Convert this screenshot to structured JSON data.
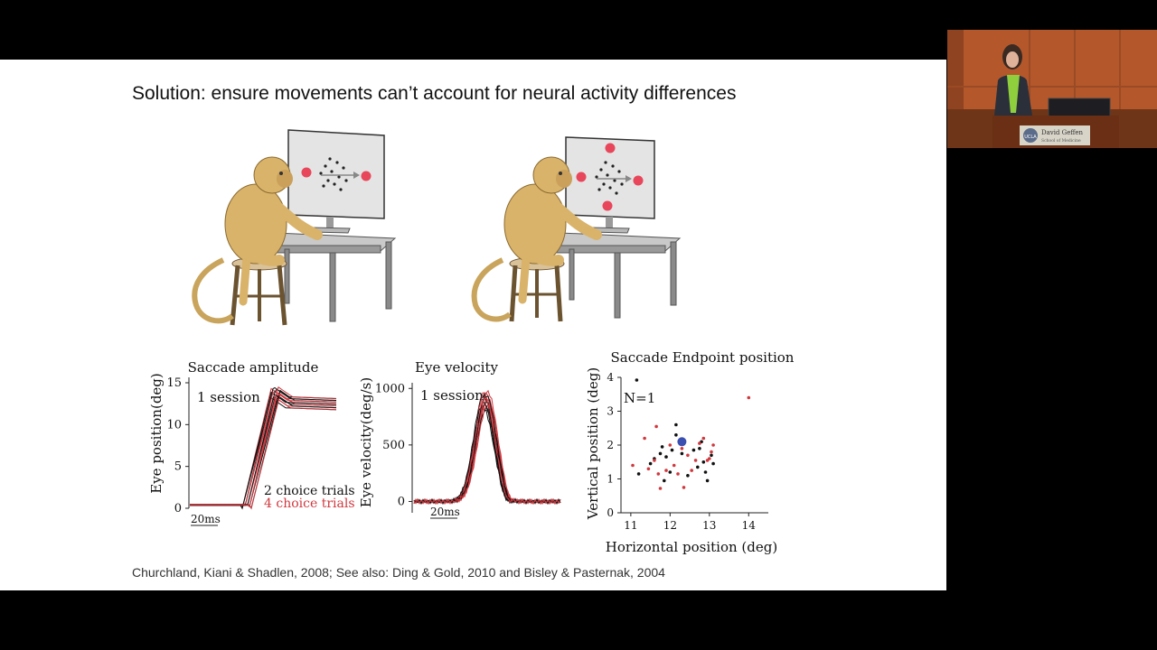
{
  "slide": {
    "title": "Solution: ensure movements can’t account for neural activity differences",
    "citation": "Churchland, Kiani & Shadlen, 2008; See also: Ding & Gold, 2010 and Bisley & Pasternak, 2004"
  },
  "illustrations": {
    "left": {
      "targets": 2,
      "target_color": "#e8465a"
    },
    "right": {
      "targets": 4,
      "target_color": "#e8465a"
    }
  },
  "chart_data": [
    {
      "type": "line",
      "title": "Saccade amplitude",
      "ylabel": "Eye position(deg)",
      "yticks": [
        "0",
        "5",
        "10",
        "15"
      ],
      "ylim": [
        0,
        15
      ],
      "scale_bar": "20ms",
      "annotation": "1 session",
      "legend": [
        {
          "name": "2 choice trials",
          "color": "#111111"
        },
        {
          "name": "4 choice trials",
          "color": "#d0383e"
        }
      ]
    },
    {
      "type": "line",
      "title": "Eye velocity",
      "ylabel": "Eye velocity(deg/s)",
      "yticks": [
        "0",
        "500",
        "1000"
      ],
      "ylim": [
        -100,
        1050
      ],
      "scale_bar": "20ms",
      "annotation": "1 session"
    },
    {
      "type": "scatter",
      "title": "Saccade Endpoint position",
      "xlabel": "Horizontal position (deg)",
      "ylabel": "Vertical position (deg)",
      "xticks": [
        "11",
        "12",
        "13",
        "14"
      ],
      "yticks": [
        "0",
        "1",
        "2",
        "3",
        "4"
      ],
      "xlim": [
        10.75,
        14.5
      ],
      "ylim": [
        0,
        4
      ],
      "annotation": "N=1",
      "series": [
        {
          "color": "#111111",
          "points": [
            [
              11.15,
              3.92
            ],
            [
              11.2,
              1.15
            ],
            [
              11.5,
              1.45
            ],
            [
              11.6,
              1.6
            ],
            [
              11.75,
              1.75
            ],
            [
              11.8,
              1.95
            ],
            [
              11.85,
              0.95
            ],
            [
              11.9,
              1.65
            ],
            [
              12.0,
              1.2
            ],
            [
              12.05,
              1.85
            ],
            [
              12.15,
              2.3
            ],
            [
              12.15,
              2.6
            ],
            [
              12.3,
              1.75
            ],
            [
              12.45,
              1.1
            ],
            [
              12.6,
              1.85
            ],
            [
              12.75,
              1.9
            ],
            [
              12.8,
              2.1
            ],
            [
              12.85,
              1.5
            ],
            [
              12.9,
              1.2
            ],
            [
              12.95,
              0.95
            ],
            [
              13.05,
              1.7
            ],
            [
              13.1,
              1.45
            ],
            [
              12.7,
              1.35
            ]
          ]
        },
        {
          "color": "#d0383e",
          "points": [
            [
              11.05,
              1.4
            ],
            [
              11.35,
              2.2
            ],
            [
              11.45,
              1.3
            ],
            [
              11.6,
              1.55
            ],
            [
              11.65,
              2.55
            ],
            [
              11.7,
              1.15
            ],
            [
              11.75,
              0.72
            ],
            [
              11.9,
              1.25
            ],
            [
              12.0,
              2.0
            ],
            [
              12.1,
              1.4
            ],
            [
              12.2,
              1.15
            ],
            [
              12.3,
              1.9
            ],
            [
              12.35,
              0.75
            ],
            [
              12.45,
              1.7
            ],
            [
              12.55,
              1.25
            ],
            [
              12.65,
              1.55
            ],
            [
              12.75,
              2.05
            ],
            [
              12.85,
              2.2
            ],
            [
              12.95,
              1.55
            ],
            [
              13.05,
              1.8
            ],
            [
              13.1,
              2.0
            ],
            [
              13.0,
              1.6
            ],
            [
              14.0,
              3.4
            ]
          ]
        },
        {
          "color": "#3a4fb0",
          "points": [
            [
              12.3,
              2.1
            ]
          ]
        }
      ]
    }
  ],
  "speaker_video": {
    "banner_text": "David Geffen",
    "banner_sub": "School of Medicine",
    "logo_text": "UCLA"
  }
}
